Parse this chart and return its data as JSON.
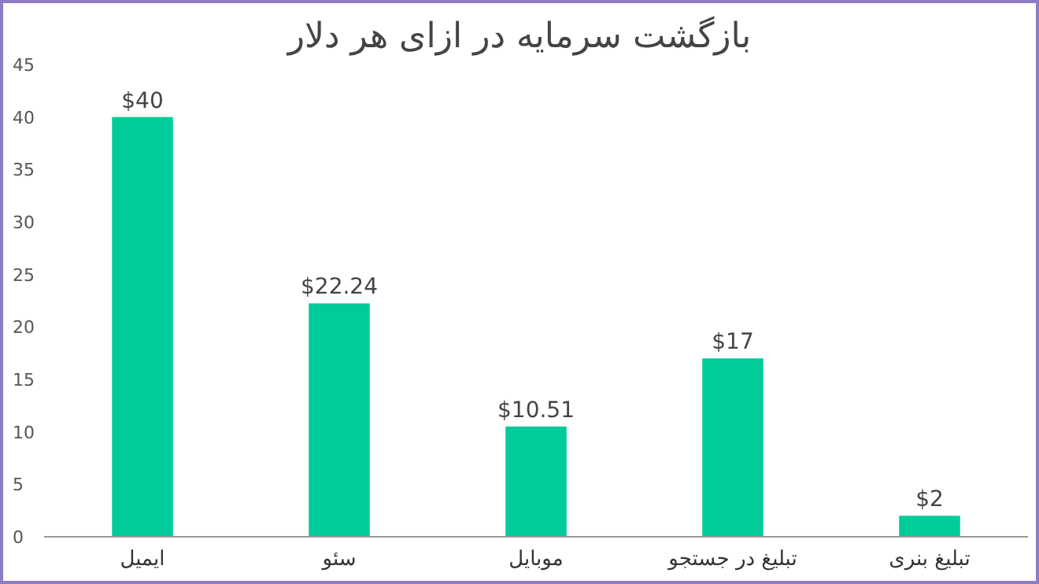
{
  "chart_data": {
    "type": "bar",
    "title": "بازگشت سرمایه در ازای هر دلار",
    "categories": [
      "ایمیل",
      "سئو",
      "موبایل",
      "تبلیغ در جستجو",
      "تبلیغ بنری"
    ],
    "values": [
      40,
      22.24,
      10.51,
      17,
      2
    ],
    "value_labels": [
      "$40",
      "$22.24",
      "$10.51",
      "$17",
      "$2"
    ],
    "color": "#00cc99",
    "ylim": [
      0,
      45
    ],
    "yticks": [
      0,
      5,
      10,
      15,
      20,
      25,
      30,
      35,
      40,
      45
    ],
    "grid": false
  }
}
